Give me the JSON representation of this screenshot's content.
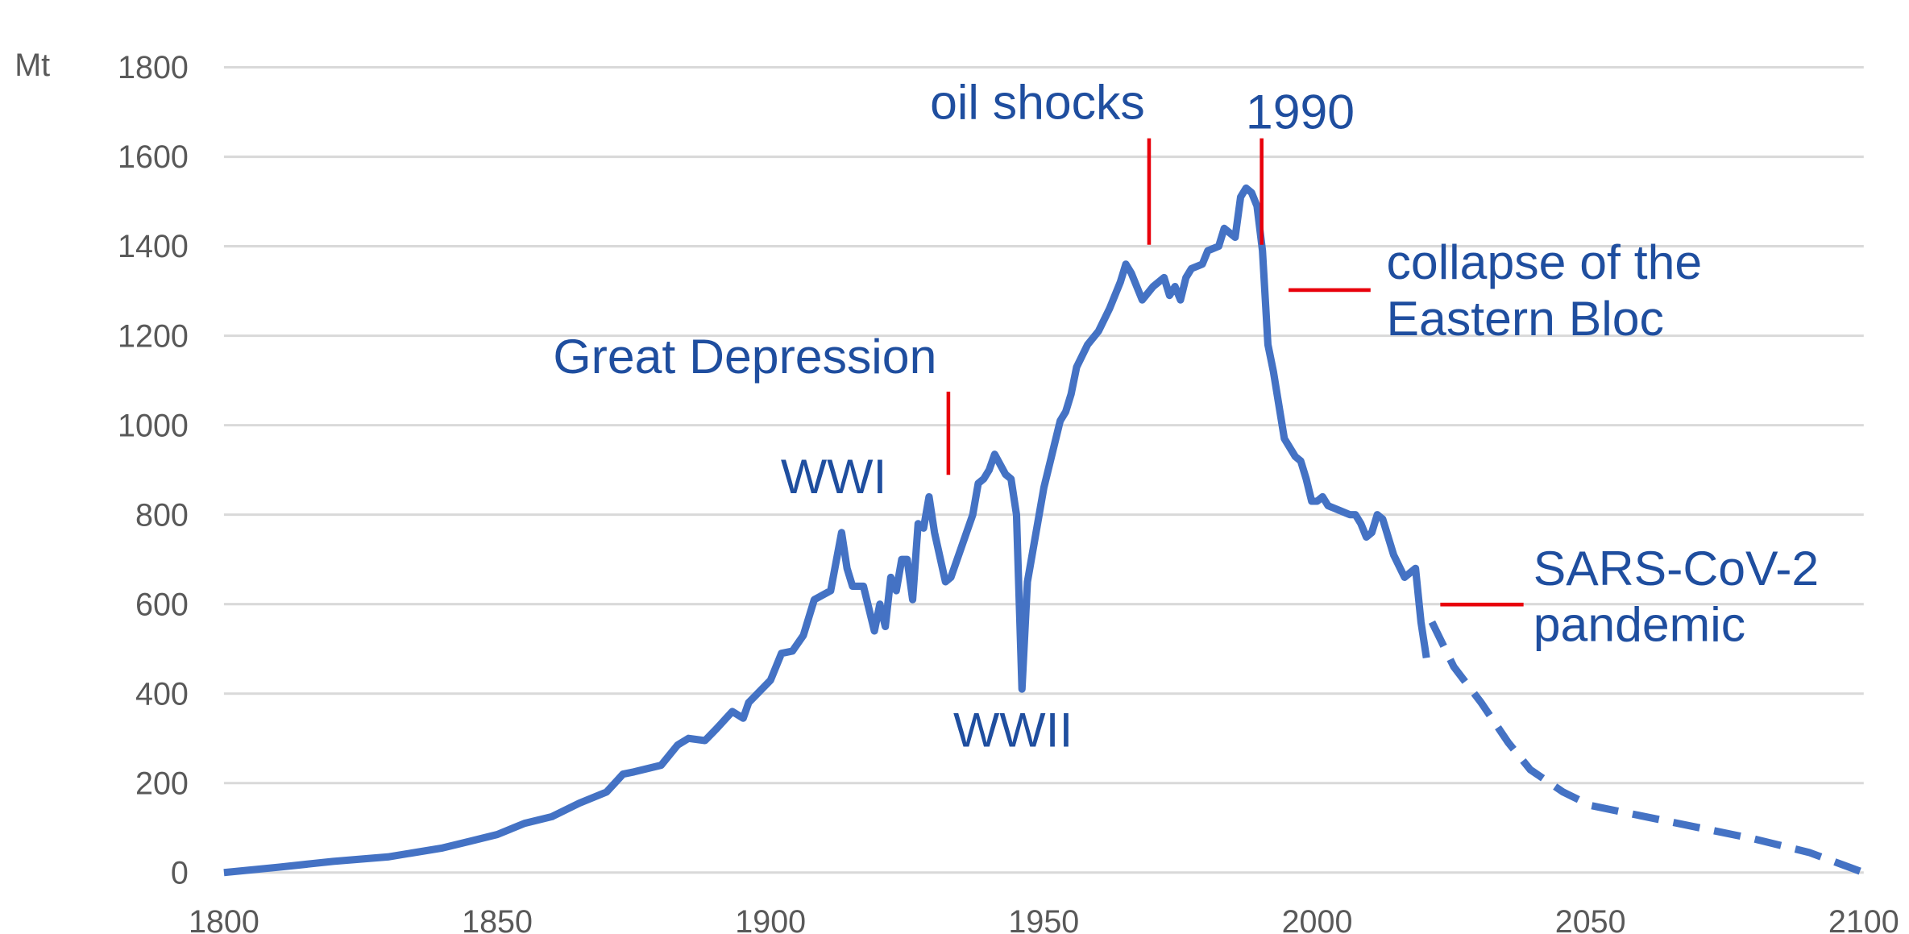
{
  "chart_data": {
    "type": "line",
    "y_label": "Mt",
    "xlim": [
      1800,
      2100
    ],
    "xticks": [
      1800,
      1850,
      1900,
      1950,
      2000,
      2050,
      2100
    ],
    "ylim": [
      0,
      1800
    ],
    "yticks": [
      0,
      200,
      400,
      600,
      800,
      1000,
      1200,
      1400,
      1600,
      1800
    ],
    "grid": true,
    "series": [
      {
        "color": "#4472c4",
        "style": "solid",
        "x": [
          1800,
          1810,
          1820,
          1830,
          1840,
          1845,
          1850,
          1855,
          1860,
          1865,
          1870,
          1873,
          1875,
          1880,
          1883,
          1885,
          1888,
          1890,
          1893,
          1895,
          1896,
          1900,
          1902,
          1904,
          1906,
          1908,
          1911,
          1913,
          1914,
          1915,
          1917,
          1919,
          1920,
          1921,
          1922,
          1923,
          1924,
          1925,
          1926,
          1927,
          1928,
          1929,
          1930,
          1932,
          1933,
          1935,
          1937,
          1938,
          1939,
          1940,
          1941,
          1943,
          1944,
          1945,
          1946,
          1947,
          1950,
          1952,
          1953,
          1954,
          1955,
          1956,
          1958,
          1960,
          1962,
          1964,
          1965,
          1966,
          1968,
          1970,
          1972,
          1973,
          1974,
          1975,
          1976,
          1977,
          1979,
          1980,
          1982,
          1983,
          1984,
          1985,
          1986,
          1987,
          1988,
          1989,
          1990,
          1991,
          1992,
          1994,
          1996,
          1997,
          1998,
          1999,
          2000,
          2001,
          2002,
          2004,
          2006,
          2007,
          2008,
          2009,
          2010,
          2011,
          2012,
          2014,
          2016,
          2017,
          2018,
          2019,
          2020
        ],
        "values": [
          0,
          12,
          25,
          35,
          55,
          70,
          85,
          110,
          125,
          155,
          180,
          220,
          225,
          240,
          285,
          300,
          295,
          320,
          360,
          345,
          380,
          430,
          490,
          495,
          530,
          610,
          630,
          760,
          680,
          640,
          640,
          540,
          600,
          550,
          660,
          630,
          700,
          700,
          610,
          780,
          770,
          840,
          760,
          650,
          660,
          730,
          800,
          870,
          880,
          900,
          935,
          890,
          880,
          800,
          410,
          650,
          860,
          960,
          1010,
          1030,
          1070,
          1130,
          1180,
          1210,
          1260,
          1320,
          1360,
          1340,
          1280,
          1310,
          1330,
          1290,
          1310,
          1280,
          1330,
          1350,
          1360,
          1390,
          1400,
          1440,
          1430,
          1420,
          1510,
          1530,
          1520,
          1490,
          1390,
          1180,
          1120,
          970,
          930,
          920,
          880,
          830,
          830,
          840,
          820,
          810,
          800,
          800,
          780,
          750,
          760,
          800,
          790,
          710,
          660,
          670,
          680,
          560,
          480
        ]
      },
      {
        "color": "#4472c4",
        "style": "dashed",
        "x": [
          2021,
          2025,
          2030,
          2035,
          2039,
          2045,
          2050,
          2060,
          2070,
          2080,
          2090,
          2100
        ],
        "values": [
          560,
          460,
          380,
          290,
          230,
          180,
          150,
          125,
          100,
          75,
          45,
          0
        ]
      }
    ],
    "annotations": [
      {
        "lines": [
          "oil shocks"
        ]
      },
      {
        "lines": [
          "1990"
        ]
      },
      {
        "lines": [
          "collapse of the",
          "Eastern Bloc"
        ]
      },
      {
        "lines": [
          "Great Depression"
        ]
      },
      {
        "lines": [
          "WWI"
        ]
      },
      {
        "lines": [
          "WWII"
        ]
      },
      {
        "lines": [
          "SARS-CoV-2",
          "pandemic"
        ]
      }
    ],
    "annotation_color": "#1f4e9f",
    "pointer_color": "#e8000b"
  }
}
